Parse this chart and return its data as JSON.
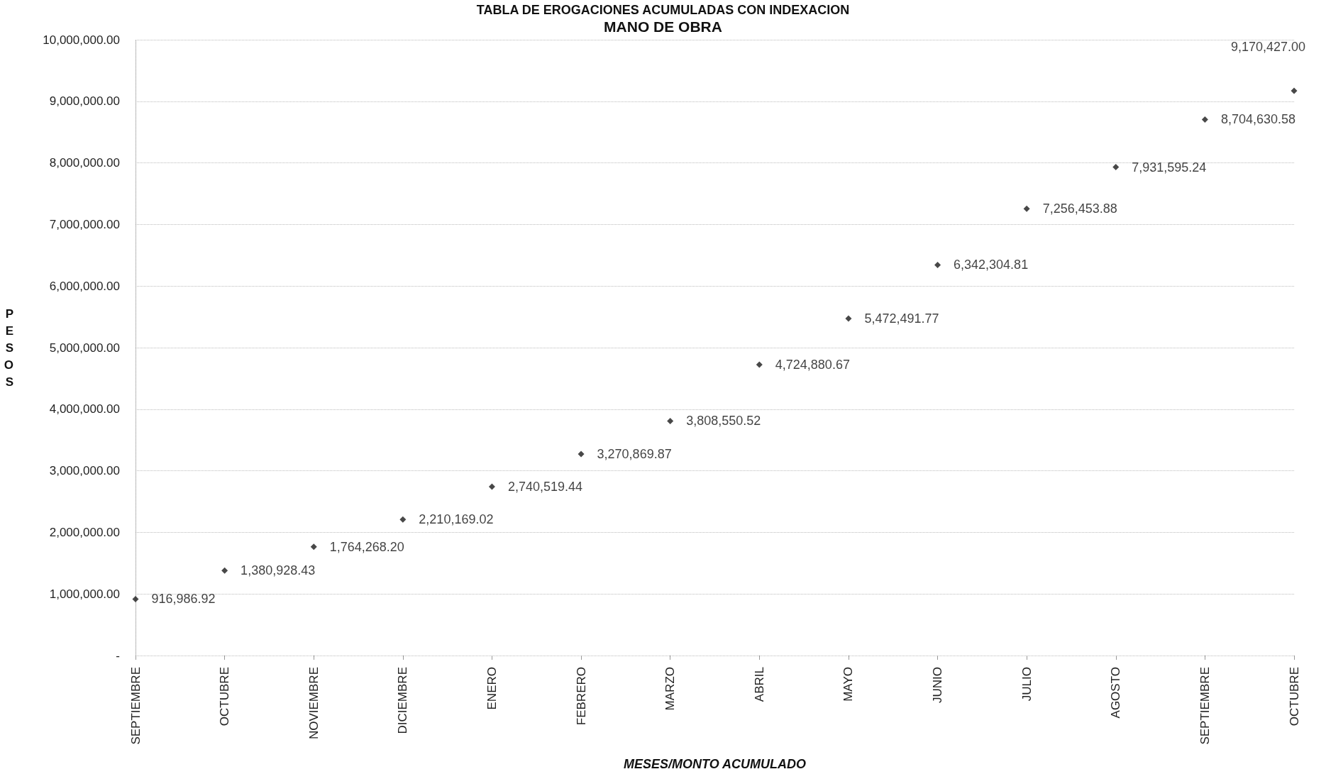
{
  "chart_data": {
    "type": "scatter",
    "title": "TABLA DE EROGACIONES ACUMULADAS CON INDEXACION",
    "subtitle": "MANO DE OBRA",
    "xlabel": "MESES/MONTO ACUMULADO",
    "ylabel": "PESOS",
    "categories": [
      "SEPTIEMBRE",
      "OCTUBRE",
      "NOVIEMBRE",
      "DICIEMBRE",
      "ENERO",
      "FEBRERO",
      "MARZO",
      "ABRIL",
      "MAYO",
      "JUNIO",
      "JULIO",
      "AGOSTO",
      "SEPTIEMBRE",
      "OCTUBRE"
    ],
    "values": [
      916986.92,
      1380928.43,
      1764268.2,
      2210169.02,
      2740519.44,
      3270869.87,
      3808550.52,
      4724880.67,
      5472491.77,
      6342304.81,
      7256453.88,
      7931595.24,
      8704630.58,
      9170427.0
    ],
    "value_labels": [
      "916,986.92",
      "1,380,928.43",
      "1,764,268.20",
      "2,210,169.02",
      "2,740,519.44",
      "3,270,869.87",
      "3,808,550.52",
      "4,724,880.67",
      "5,472,491.77",
      "6,342,304.81",
      "7,256,453.88",
      "7,931,595.24",
      "8,704,630.58",
      "9,170,427.00"
    ],
    "color": "#1a1a1a",
    "ylim": [
      0,
      10000000
    ],
    "yticks": [
      {
        "value": 0,
        "label": "-"
      },
      {
        "value": 1000000,
        "label": "1,000,000.00"
      },
      {
        "value": 2000000,
        "label": "2,000,000.00"
      },
      {
        "value": 3000000,
        "label": "3,000,000.00"
      },
      {
        "value": 4000000,
        "label": "4,000,000.00"
      },
      {
        "value": 5000000,
        "label": "5,000,000.00"
      },
      {
        "value": 6000000,
        "label": "6,000,000.00"
      },
      {
        "value": 7000000,
        "label": "7,000,000.00"
      },
      {
        "value": 8000000,
        "label": "8,000,000.00"
      },
      {
        "value": 9000000,
        "label": "9,000,000.00"
      },
      {
        "value": 10000000,
        "label": "10,000,000.00"
      }
    ],
    "grid": "y",
    "marker": "diamond"
  }
}
